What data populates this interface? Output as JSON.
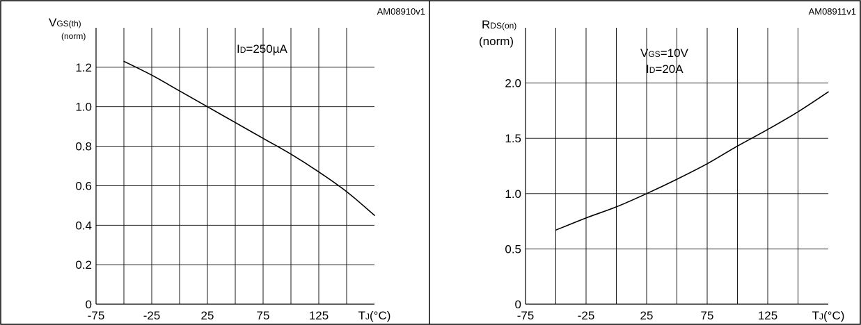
{
  "chart_data": [
    {
      "type": "line",
      "reference": "AM08910v1",
      "ylabel": {
        "main": "V",
        "sub": "GS(th)",
        "unit": "(norm)"
      },
      "xlabel": {
        "main": "T",
        "sub": "J",
        "unit": "(°C)"
      },
      "condition": [
        {
          "main": "I",
          "sub": "D",
          "rest": "=250µA"
        }
      ],
      "xlim": [
        -75,
        175
      ],
      "ylim": [
        0,
        1.4
      ],
      "xticks": [
        -75,
        -25,
        25,
        75,
        125
      ],
      "xtick_labels": [
        "-75",
        "-25",
        "25",
        "75",
        "125"
      ],
      "yticks": [
        0,
        0.2,
        0.4,
        0.6,
        0.8,
        1.0,
        1.2
      ],
      "ytick_labels": [
        "0",
        "0.2",
        "0.4",
        "0.6",
        "0.8",
        "1.0",
        "1.2"
      ],
      "grid": true,
      "series": [
        {
          "x": [
            -50,
            -25,
            0,
            25,
            50,
            75,
            100,
            125,
            150,
            175
          ],
          "y": [
            1.23,
            1.16,
            1.08,
            1.0,
            0.92,
            0.84,
            0.76,
            0.67,
            0.57,
            0.45
          ]
        }
      ]
    },
    {
      "type": "line",
      "reference": "AM08911v1",
      "ylabel": {
        "main": "R",
        "sub": "DS(on)",
        "unit": "(norm)"
      },
      "xlabel": {
        "main": "T",
        "sub": "J",
        "unit": "(°C)"
      },
      "condition": [
        {
          "main": "V",
          "sub": "GS",
          "rest": "=10V"
        },
        {
          "main": "I",
          "sub": "D",
          "rest": "=20A"
        }
      ],
      "xlim": [
        -75,
        175
      ],
      "ylim": [
        0,
        2.5
      ],
      "xticks": [
        -75,
        -25,
        25,
        75,
        125
      ],
      "xtick_labels": [
        "-75",
        "-25",
        "25",
        "75",
        "125"
      ],
      "yticks": [
        0,
        0.5,
        1.0,
        1.5,
        2.0
      ],
      "ytick_labels": [
        "0",
        "0.5",
        "1.0",
        "1.5",
        "2.0"
      ],
      "grid": true,
      "series": [
        {
          "x": [
            -50,
            -25,
            0,
            25,
            50,
            75,
            100,
            125,
            150,
            175
          ],
          "y": [
            0.67,
            0.78,
            0.88,
            1.0,
            1.13,
            1.27,
            1.43,
            1.58,
            1.74,
            1.92
          ]
        }
      ]
    }
  ]
}
